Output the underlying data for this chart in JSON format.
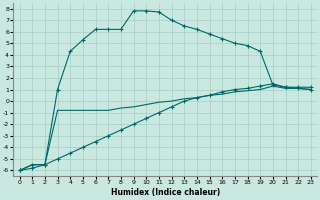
{
  "xlabel": "Humidex (Indice chaleur)",
  "bg_color": "#c8e8e0",
  "grid_color": "#a8ccc8",
  "line_color": "#006868",
  "xlim": [
    -0.5,
    23.5
  ],
  "ylim": [
    -6.5,
    8.5
  ],
  "xticks": [
    0,
    1,
    2,
    3,
    4,
    5,
    6,
    7,
    8,
    9,
    10,
    11,
    12,
    13,
    14,
    15,
    16,
    17,
    18,
    19,
    20,
    21,
    22,
    23
  ],
  "yticks": [
    -6,
    -5,
    -4,
    -3,
    -2,
    -1,
    0,
    1,
    2,
    3,
    4,
    5,
    6,
    7,
    8
  ],
  "line1_x": [
    0,
    1,
    2,
    3,
    4,
    5,
    6,
    7,
    8,
    9,
    10,
    11,
    12,
    13,
    14,
    15,
    16,
    17,
    18,
    19,
    20,
    21,
    22,
    23
  ],
  "line1_y": [
    -6.0,
    -5.5,
    -5.5,
    1.0,
    4.3,
    5.3,
    6.2,
    6.2,
    6.2,
    7.8,
    7.8,
    7.7,
    7.0,
    6.5,
    6.2,
    5.8,
    5.4,
    5.0,
    4.8,
    4.3,
    1.4,
    1.2,
    1.2,
    1.2
  ],
  "line2_x": [
    0,
    1,
    2,
    3,
    4,
    5,
    6,
    7,
    8,
    9,
    10,
    11,
    12,
    13,
    14,
    15,
    16,
    17,
    18,
    19,
    20,
    21,
    22,
    23
  ],
  "line2_y": [
    -6.0,
    -5.5,
    -5.5,
    -0.8,
    -0.8,
    -0.8,
    -0.8,
    -0.8,
    -0.6,
    -0.5,
    -0.3,
    -0.1,
    0.0,
    0.2,
    0.3,
    0.5,
    0.6,
    0.8,
    0.9,
    1.0,
    1.3,
    1.1,
    1.1,
    1.0
  ],
  "line3_x": [
    0,
    1,
    2,
    3,
    4,
    5,
    6,
    7,
    8,
    9,
    10,
    11,
    12,
    13,
    14,
    15,
    16,
    17,
    18,
    19,
    20,
    21,
    22,
    23
  ],
  "line3_y": [
    -6.0,
    -5.8,
    -5.5,
    -5.0,
    -4.5,
    -4.0,
    -3.5,
    -3.0,
    -2.5,
    -2.0,
    -1.5,
    -1.0,
    -0.5,
    0.0,
    0.3,
    0.5,
    0.8,
    1.0,
    1.1,
    1.3,
    1.5,
    1.2,
    1.1,
    1.0
  ]
}
